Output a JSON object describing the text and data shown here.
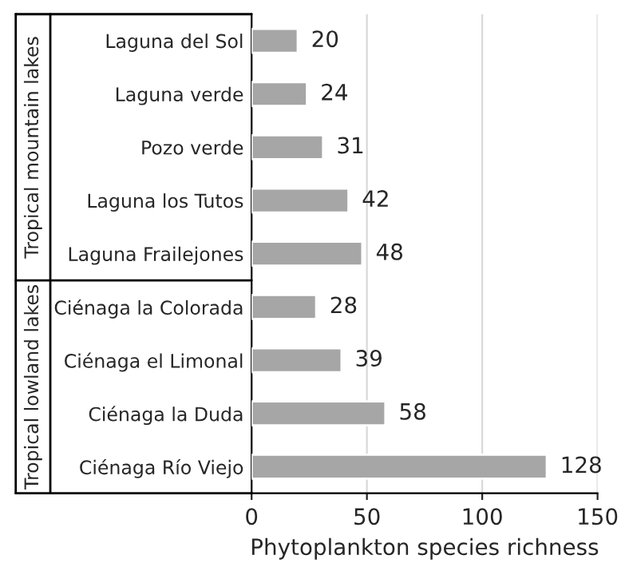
{
  "chart_data": {
    "type": "bar",
    "orientation": "horizontal",
    "xlabel": "Phytoplankton species richness",
    "categories": [
      "Laguna del Sol",
      "Laguna verde",
      "Pozo verde",
      "Laguna los Tutos",
      "Laguna Frailejones",
      "Ciénaga la Colorada",
      "Ciénaga el Limonal",
      "Ciénaga la Duda",
      "Ciénaga Río Viejo"
    ],
    "values": [
      20,
      24,
      31,
      42,
      48,
      28,
      39,
      58,
      128
    ],
    "color": "#a6a6a6",
    "xlim": [
      0,
      150
    ],
    "xticks": [
      0,
      50,
      100,
      150
    ],
    "grid": "x",
    "data_labels": true,
    "annotations": [
      "Tropical mountain lakes",
      "Tropical lowland lakes"
    ]
  }
}
